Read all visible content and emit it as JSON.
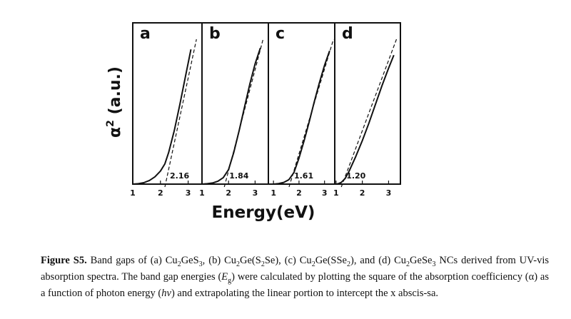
{
  "figure": {
    "ylabel_main": "α",
    "ylabel_sup": "2",
    "ylabel_rest": " (a.u.)",
    "xlabel": "Energy(eV)"
  },
  "chart_data": [
    {
      "panel": "a",
      "type": "line",
      "xlim": [
        1,
        3.5
      ],
      "xticks": [
        1,
        2,
        3
      ],
      "tick_labels": [
        "1",
        "2",
        "3"
      ],
      "ylim": [
        0,
        1
      ],
      "band_gap": 2.16,
      "band_gap_label": "2.16",
      "series": [
        {
          "x": [
            1.0,
            1.2,
            1.4,
            1.6,
            1.8,
            2.0,
            2.16,
            2.3,
            2.5,
            2.7,
            2.9,
            3.1
          ],
          "y": [
            0.0,
            0.003,
            0.01,
            0.025,
            0.05,
            0.09,
            0.14,
            0.22,
            0.37,
            0.55,
            0.74,
            0.93
          ]
        }
      ],
      "fit_line": {
        "x": [
          2.16,
          3.3
        ],
        "y": [
          0.0,
          1.0
        ]
      }
    },
    {
      "panel": "b",
      "type": "line",
      "xlim": [
        1,
        3.5
      ],
      "xticks": [
        1,
        2,
        3
      ],
      "tick_labels": [
        "1",
        "2",
        "3"
      ],
      "ylim": [
        0,
        1
      ],
      "band_gap": 1.84,
      "band_gap_label": "1.84",
      "series": [
        {
          "x": [
            1.0,
            1.2,
            1.4,
            1.6,
            1.8,
            2.0,
            2.2,
            2.4,
            2.6,
            2.8,
            3.0,
            3.2
          ],
          "y": [
            0.0,
            0.003,
            0.008,
            0.02,
            0.045,
            0.1,
            0.22,
            0.37,
            0.53,
            0.69,
            0.83,
            0.94
          ]
        }
      ],
      "fit_line": {
        "x": [
          1.84,
          3.3
        ],
        "y": [
          0.0,
          1.0
        ]
      }
    },
    {
      "panel": "c",
      "type": "line",
      "xlim": [
        0.8,
        3.4
      ],
      "xticks": [
        1,
        2,
        3
      ],
      "tick_labels": [
        "1",
        "2",
        "3"
      ],
      "ylim": [
        0,
        1
      ],
      "band_gap": 1.61,
      "band_gap_label": "1.61",
      "series": [
        {
          "x": [
            1.0,
            1.2,
            1.4,
            1.6,
            1.8,
            2.0,
            2.2,
            2.4,
            2.6,
            2.8,
            3.0,
            3.2
          ],
          "y": [
            0.0,
            0.004,
            0.012,
            0.03,
            0.08,
            0.18,
            0.3,
            0.43,
            0.57,
            0.7,
            0.82,
            0.92
          ]
        }
      ],
      "fit_line": {
        "x": [
          1.61,
          3.35
        ],
        "y": [
          0.0,
          1.0
        ]
      }
    },
    {
      "panel": "d",
      "type": "line",
      "xlim": [
        0.95,
        3.45
      ],
      "xticks": [
        1,
        2,
        3
      ],
      "tick_labels": [
        "1",
        "2",
        "3"
      ],
      "ylim": [
        0,
        1
      ],
      "band_gap": 1.2,
      "band_gap_label": "1.20",
      "series": [
        {
          "x": [
            1.0,
            1.1,
            1.2,
            1.35,
            1.5,
            1.75,
            2.0,
            2.25,
            2.5,
            2.75,
            3.0,
            3.2
          ],
          "y": [
            0.0,
            0.004,
            0.012,
            0.04,
            0.09,
            0.19,
            0.3,
            0.42,
            0.55,
            0.68,
            0.8,
            0.89
          ]
        }
      ],
      "fit_line": {
        "x": [
          1.2,
          3.3
        ],
        "y": [
          0.0,
          1.0
        ]
      }
    }
  ],
  "caption": {
    "label": "Figure S5.",
    "t1": " Band gaps of (a) Cu",
    "s1": "2",
    "t2": "GeS",
    "s2": "3",
    "t3": ", (b) Cu",
    "s3": "2",
    "t4": "Ge(S",
    "s4": "2",
    "t5": "Se), (c) Cu",
    "s5": "2",
    "t6": "Ge(SSe",
    "s6": "2",
    "t7": "), and (d) Cu",
    "s7": "2",
    "t8": "GeSe",
    "s8": "3",
    "t9": " NCs derived from UV-vis absorption spectra. The band gap energies (",
    "i1": "E",
    "s9": "g",
    "t10": ") were calculated by plotting the square of the absorption coefficiency (α) as a function of photon energy (",
    "i2": "hv",
    "t11": ") and extrapolating the linear portion to intercept the x abscis-sa."
  }
}
